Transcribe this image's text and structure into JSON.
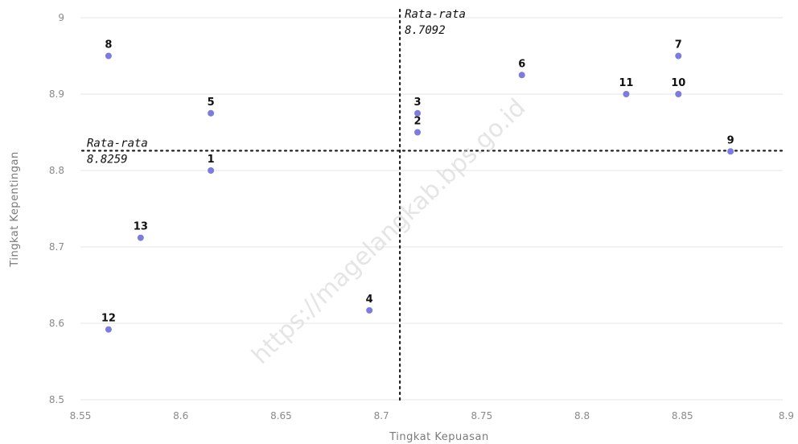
{
  "chart_data": {
    "type": "scatter",
    "xlabel": "Tingkat Kepuasan",
    "ylabel": "Tingkat Kepentingan",
    "xlim": [
      8.55,
      8.9
    ],
    "ylim": [
      8.5,
      9.0
    ],
    "x_ticks": [
      "8.55",
      "8.6",
      "8.65",
      "8.7",
      "8.75",
      "8.8",
      "8.85",
      "8.9"
    ],
    "y_ticks": [
      "8.5",
      "8.6",
      "8.7",
      "8.8",
      "8.9",
      "9"
    ],
    "grid": "horizontal",
    "point_color": "#7b7be0",
    "points": [
      {
        "label": "1",
        "x": 8.615,
        "y": 8.8
      },
      {
        "label": "2",
        "x": 8.718,
        "y": 8.85
      },
      {
        "label": "3",
        "x": 8.718,
        "y": 8.875
      },
      {
        "label": "4",
        "x": 8.694,
        "y": 8.617
      },
      {
        "label": "5",
        "x": 8.615,
        "y": 8.875
      },
      {
        "label": "6",
        "x": 8.77,
        "y": 8.925
      },
      {
        "label": "7",
        "x": 8.848,
        "y": 8.95
      },
      {
        "label": "8",
        "x": 8.564,
        "y": 8.95
      },
      {
        "label": "9",
        "x": 8.874,
        "y": 8.825
      },
      {
        "label": "10",
        "x": 8.848,
        "y": 8.9
      },
      {
        "label": "11",
        "x": 8.822,
        "y": 8.9
      },
      {
        "label": "12",
        "x": 8.564,
        "y": 8.592
      },
      {
        "label": "13",
        "x": 8.58,
        "y": 8.712
      }
    ],
    "reference_lines": {
      "x_mean": {
        "value": 8.7092,
        "label_line1": "Rata-rata",
        "label_line2": "8.7092"
      },
      "y_mean": {
        "value": 8.8259,
        "label_line1": "Rata-rata",
        "label_line2": "8.8259"
      }
    },
    "watermark": "https://magelangkab.bps.go.id"
  }
}
